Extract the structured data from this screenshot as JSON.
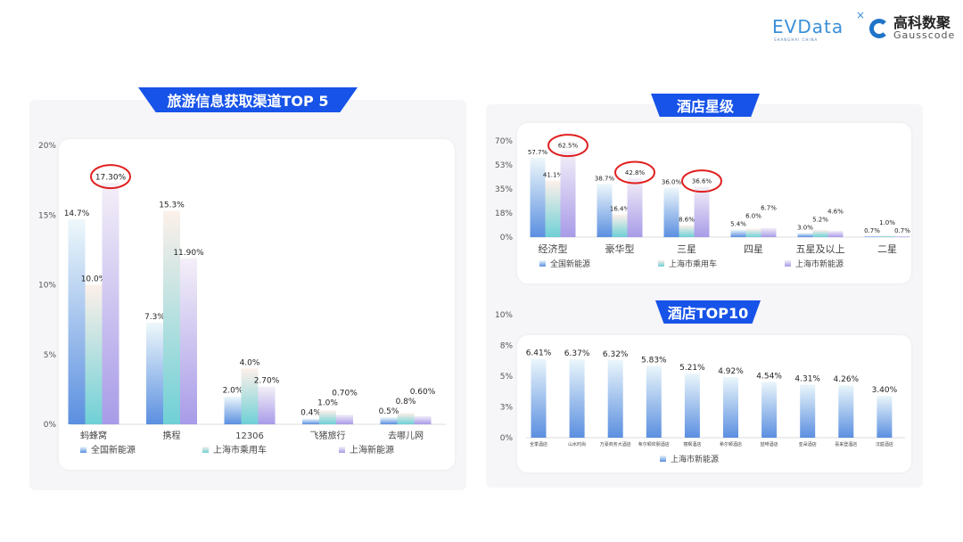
{
  "logos": {
    "evdata": "EVData",
    "evdata_sub": "SHANGHAI CHINA",
    "gauss_cn": "高科数聚",
    "gauss_en": "Gausscode"
  },
  "colors": {
    "banner": "#1753e8",
    "highlight": "#e0201f",
    "series_national": "#5b8fe0",
    "series_sh_passenger": "#6fd0d6",
    "series_sh_nev": "#a89be8"
  },
  "chart_data": [
    {
      "type": "bar",
      "title": "旅游信息获取渠道TOP 5",
      "categories": [
        "蚂蜂窝",
        "携程",
        "12306",
        "飞猪旅行",
        "去哪儿网"
      ],
      "yticks": [
        "0%",
        "5%",
        "10%",
        "15%",
        "20%"
      ],
      "ylim": [
        0,
        20
      ],
      "series": [
        {
          "name": "全国新能源",
          "values": [
            14.7,
            7.3,
            2.0,
            0.4,
            0.5
          ],
          "labels": [
            "14.7%",
            "7.3%",
            "2.0%",
            "0.4%",
            "0.5%"
          ]
        },
        {
          "name": "上海市乘用车",
          "values": [
            10.0,
            15.3,
            4.0,
            1.0,
            0.8
          ],
          "labels": [
            "10.0%",
            "15.3%",
            "4.0%",
            "1.0%",
            "0.8%"
          ]
        },
        {
          "name": "上海新能源",
          "values": [
            17.3,
            11.9,
            2.7,
            0.7,
            0.6
          ],
          "labels": [
            "17.30%",
            "11.90%",
            "2.70%",
            "0.70%",
            "0.60%"
          ]
        }
      ],
      "highlighted": [
        [
          2,
          0
        ]
      ],
      "legend": "bottom"
    },
    {
      "type": "bar",
      "title": "酒店星级",
      "categories": [
        "经济型",
        "豪华型",
        "三星",
        "四星",
        "五星及以上",
        "二星"
      ],
      "yticks": [
        "0%",
        "18%",
        "35%",
        "53%",
        "70%"
      ],
      "ylim": [
        0,
        70
      ],
      "series": [
        {
          "name": "全国新能源",
          "values": [
            57.7,
            38.7,
            36.0,
            5.4,
            3.0,
            0.7
          ],
          "labels": [
            "57.7%",
            "38.7%",
            "36.0%",
            "5.4%",
            "3.0%",
            "0.7%"
          ]
        },
        {
          "name": "上海市乘用车",
          "values": [
            41.1,
            16.4,
            8.6,
            6.0,
            5.2,
            1.0
          ],
          "labels": [
            "41.1%",
            "16.4%",
            "8.6%",
            "6.0%",
            "5.2%",
            "1.0%"
          ]
        },
        {
          "name": "上海市新能源",
          "values": [
            62.5,
            42.8,
            36.6,
            6.7,
            4.6,
            0.7
          ],
          "labels": [
            "62.5%",
            "42.8%",
            "36.6%",
            "6.7%",
            "4.6%",
            "0.7%"
          ]
        }
      ],
      "highlighted": [
        [
          2,
          0
        ],
        [
          2,
          1
        ],
        [
          2,
          2
        ]
      ],
      "legend": "bottom"
    },
    {
      "type": "bar",
      "title": "酒店TOP10",
      "categories": [
        "全季酒店",
        "山水时尚",
        "万豪商务大酒店",
        "希尔顿欢朋酒店",
        "丽枫酒店",
        "希尔顿酒店",
        "喆啡酒店",
        "亚朵酒店",
        "喜来登酒店",
        "汉庭酒店"
      ],
      "yticks": [
        "0%",
        "3%",
        "5%",
        "8%",
        "10%"
      ],
      "ylim": [
        0,
        10
      ],
      "series": [
        {
          "name": "上海市新能源",
          "values": [
            6.41,
            6.37,
            6.32,
            5.83,
            5.21,
            4.92,
            4.54,
            4.31,
            4.26,
            3.4
          ],
          "labels": [
            "6.41%",
            "6.37%",
            "6.32%",
            "5.83%",
            "5.21%",
            "4.92%",
            "4.54%",
            "4.31%",
            "4.26%",
            "3.40%"
          ]
        }
      ],
      "legend": "bottom"
    }
  ]
}
